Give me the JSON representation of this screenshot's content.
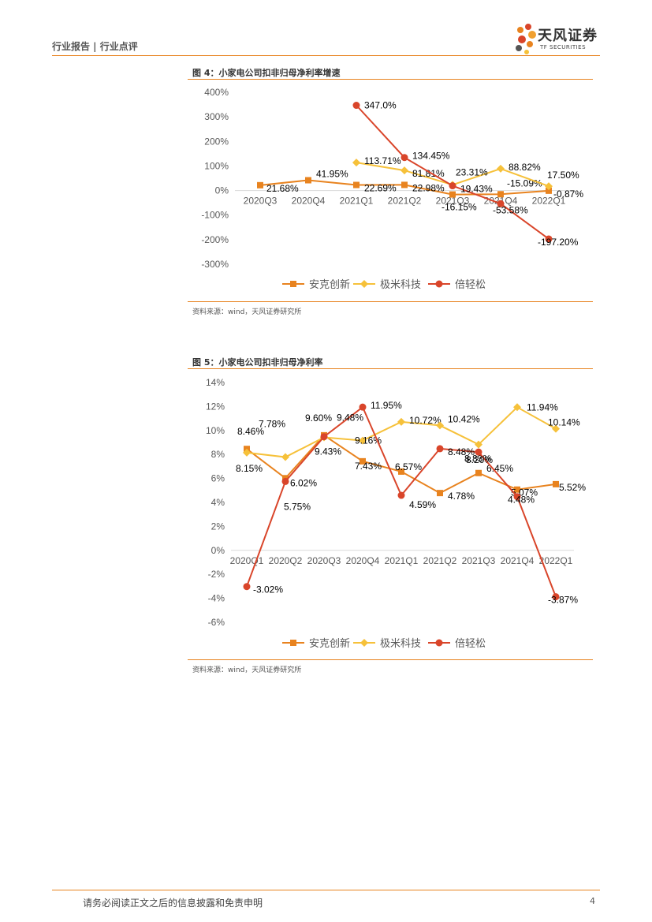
{
  "header": {
    "left": "行业报告 | 行业点评",
    "logo_cn": "天风证券",
    "logo_en": "TF SECURITIES"
  },
  "figures": [
    {
      "title": "图 4：小家电公司扣非归母净利率增速",
      "source": "资料来源：wind，天风证券研究所"
    },
    {
      "title": "图 5：小家电公司扣非归母净利率",
      "source": "资料来源：wind，天风证券研究所"
    }
  ],
  "chart_data": [
    {
      "type": "line",
      "x": [
        "2020Q3",
        "2020Q4",
        "2021Q1",
        "2021Q2",
        "2021Q3",
        "2021Q4",
        "2022Q1"
      ],
      "ylim": [
        -300,
        400
      ],
      "yticks": [
        "400%",
        "300%",
        "200%",
        "100%",
        "0%",
        "-100%",
        "-200%",
        "-300%"
      ],
      "colors": [
        "#e8831f",
        "#f6c13a",
        "#d9452a"
      ],
      "series": [
        {
          "name": "安克创新",
          "marker": "square",
          "values": [
            21.68,
            41.95,
            22.69,
            22.98,
            -16.15,
            -15.09,
            -0.87
          ],
          "labels": [
            "21.68%",
            "41.95%",
            "22.69%",
            "22.98%",
            "-16.15%",
            "-15.09%",
            "-0.87%"
          ]
        },
        {
          "name": "极米科技",
          "marker": "diamond",
          "values": [
            null,
            null,
            113.71,
            81.81,
            23.31,
            88.82,
            17.5
          ],
          "labels": [
            "",
            "",
            "113.71%",
            "81.81%",
            "23.31%",
            "88.82%",
            "17.50%"
          ]
        },
        {
          "name": "倍轻松",
          "marker": "circle",
          "values": [
            null,
            null,
            347.0,
            134.45,
            19.43,
            -53.58,
            -197.2
          ],
          "labels": [
            "",
            "",
            "347.0%",
            "134.45%",
            "19.43%",
            "-53.58%",
            "-197.20%"
          ]
        }
      ]
    },
    {
      "type": "line",
      "x": [
        "2020Q1",
        "2020Q2",
        "2020Q3",
        "2020Q4",
        "2021Q1",
        "2021Q2",
        "2021Q3",
        "2021Q4",
        "2022Q1"
      ],
      "ylim": [
        -6,
        14
      ],
      "yticks": [
        "14%",
        "12%",
        "10%",
        "8%",
        "6%",
        "4%",
        "2%",
        "0%",
        "-2%",
        "-4%",
        "-6%"
      ],
      "colors": [
        "#e8831f",
        "#f6c13a",
        "#d9452a"
      ],
      "series": [
        {
          "name": "安克创新",
          "marker": "square",
          "values": [
            8.46,
            6.02,
            9.6,
            7.43,
            6.57,
            4.78,
            6.45,
            5.07,
            5.52
          ],
          "labels": [
            "8.46%",
            "6.02%",
            "9.60%",
            "7.43%",
            "6.57%",
            "4.78%",
            "6.45%",
            "5.07%",
            "5.52%"
          ]
        },
        {
          "name": "极米科技",
          "marker": "diamond",
          "values": [
            8.15,
            7.78,
            9.43,
            9.16,
            10.72,
            10.42,
            8.83,
            11.94,
            10.14
          ],
          "labels": [
            "8.15%",
            "7.78%",
            "9.43%",
            "9.16%",
            "10.72%",
            "10.42%",
            "8.83%",
            "11.94%",
            "10.14%"
          ]
        },
        {
          "name": "倍轻松",
          "marker": "circle",
          "values": [
            -3.02,
            5.75,
            9.48,
            11.95,
            4.59,
            8.48,
            8.2,
            4.48,
            -3.87
          ],
          "labels": [
            "-3.02%",
            "5.75%",
            "9.48%",
            "11.95%",
            "4.59%",
            "8.48%",
            "8.20%",
            "4.48%",
            "-3.87%"
          ]
        }
      ]
    }
  ],
  "footer": {
    "disclaimer": "请务必阅读正文之后的信息披露和免责申明",
    "page": "4"
  }
}
